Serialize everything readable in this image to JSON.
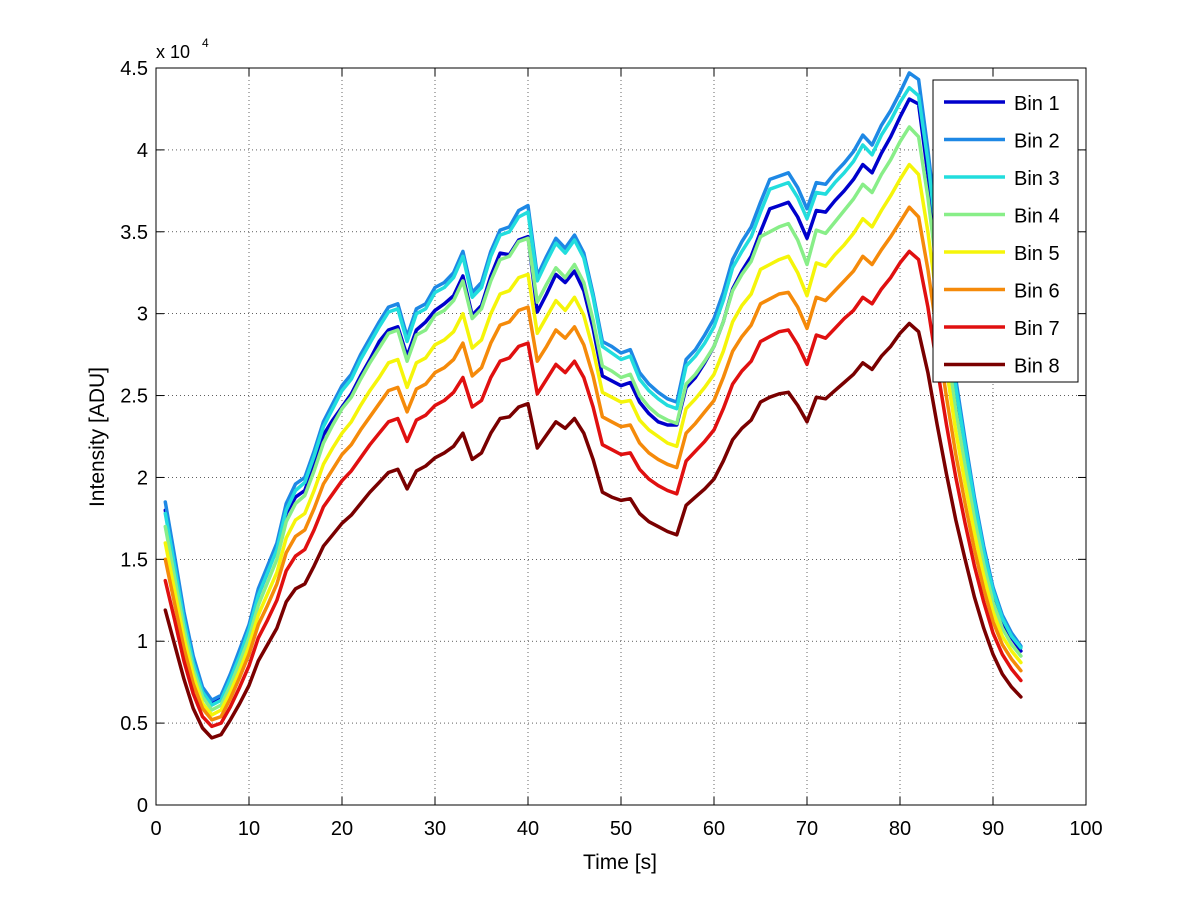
{
  "chart_data": {
    "type": "line",
    "xlabel": "Time [s]",
    "ylabel": "Intensity [ADU]",
    "xlim": [
      0,
      100
    ],
    "ylim": [
      0,
      45000
    ],
    "xticks": [
      0,
      10,
      20,
      30,
      40,
      50,
      60,
      70,
      80,
      90,
      100
    ],
    "yticks": [
      0,
      0.5,
      1,
      1.5,
      2,
      2.5,
      3,
      3.5,
      4,
      4.5
    ],
    "y_exponent_label": "x 10",
    "y_exponent_power": "4",
    "y_multiplier": 10000,
    "grid": true,
    "legend_position": "top-right",
    "x": [
      1,
      2,
      3,
      4,
      5,
      6,
      7,
      8,
      9,
      10,
      11,
      12,
      13,
      14,
      15,
      16,
      17,
      18,
      19,
      20,
      21,
      22,
      23,
      24,
      25,
      26,
      27,
      28,
      29,
      30,
      31,
      32,
      33,
      34,
      35,
      36,
      37,
      38,
      39,
      40,
      41,
      42,
      43,
      44,
      45,
      46,
      47,
      48,
      49,
      50,
      51,
      52,
      53,
      54,
      55,
      56,
      57,
      58,
      59,
      60,
      61,
      62,
      63,
      64,
      65,
      66,
      67,
      68,
      69,
      70,
      71,
      72,
      73,
      74,
      75,
      76,
      77,
      78,
      79,
      80,
      81,
      82,
      83,
      84,
      85,
      86,
      87,
      88,
      89,
      90,
      91,
      92,
      93
    ],
    "series": [
      {
        "name": "Bin 1",
        "color": "#0000CC",
        "values": [
          18000,
          14800,
          11500,
          8800,
          7000,
          6200,
          6500,
          7800,
          9200,
          10800,
          12800,
          14200,
          15700,
          17800,
          18800,
          19200,
          20800,
          22600,
          23500,
          24300,
          25100,
          26200,
          27200,
          28300,
          29000,
          29200,
          27400,
          29000,
          29500,
          30200,
          30600,
          31100,
          32300,
          29900,
          30500,
          32300,
          33700,
          33600,
          34500,
          34700,
          30100,
          31200,
          32400,
          31900,
          32600,
          31400,
          29100,
          26200,
          25900,
          25600,
          25800,
          24600,
          23900,
          23400,
          23200,
          23200,
          25500,
          26100,
          27000,
          28000,
          29500,
          31500,
          32600,
          33500,
          35000,
          36400,
          36600,
          36800,
          35900,
          34600,
          36300,
          36200,
          36900,
          37500,
          38200,
          39100,
          38600,
          39800,
          40800,
          42000,
          43100,
          42800,
          38500,
          33800,
          29200,
          25100,
          21500,
          18000,
          15200,
          12800,
          11200,
          10200,
          9400
        ]
      },
      {
        "name": "Bin 2",
        "color": "#1E88E5",
        "values": [
          18500,
          15200,
          11800,
          9100,
          7200,
          6400,
          6700,
          8000,
          9500,
          11000,
          13200,
          14600,
          16000,
          18400,
          19600,
          20000,
          21600,
          23400,
          24500,
          25600,
          26300,
          27500,
          28500,
          29500,
          30400,
          30600,
          28600,
          30300,
          30600,
          31600,
          31900,
          32500,
          33800,
          31300,
          31900,
          33800,
          35100,
          35300,
          36300,
          36600,
          32300,
          33500,
          34600,
          34000,
          34800,
          33700,
          31200,
          28300,
          28000,
          27600,
          27800,
          26400,
          25700,
          25200,
          24800,
          24600,
          27200,
          27800,
          28700,
          29700,
          31300,
          33300,
          34400,
          35300,
          36800,
          38200,
          38400,
          38600,
          37700,
          36400,
          38000,
          37900,
          38600,
          39200,
          39900,
          40900,
          40300,
          41500,
          42400,
          43500,
          44700,
          44300,
          40000,
          35000,
          30300,
          26000,
          22300,
          18800,
          15800,
          13300,
          11600,
          10500,
          9700
        ]
      },
      {
        "name": "Bin 3",
        "color": "#22DDDD",
        "values": [
          17800,
          14600,
          11300,
          8700,
          6900,
          6100,
          6400,
          7700,
          9100,
          10700,
          12800,
          14200,
          15600,
          18000,
          19200,
          19700,
          21300,
          23100,
          24200,
          25300,
          26000,
          27200,
          28200,
          29200,
          30100,
          30300,
          28300,
          30000,
          30300,
          31300,
          31600,
          32200,
          33500,
          31000,
          31600,
          33500,
          34800,
          35000,
          35900,
          36200,
          32000,
          33200,
          34300,
          33700,
          34500,
          33400,
          31000,
          28000,
          27600,
          27200,
          27400,
          26000,
          25300,
          24800,
          24400,
          24200,
          26800,
          27400,
          28200,
          29200,
          30800,
          32800,
          33800,
          34700,
          36200,
          37600,
          37800,
          38000,
          37100,
          35800,
          37400,
          37300,
          38000,
          38600,
          39300,
          40300,
          39700,
          40900,
          41800,
          42900,
          43800,
          43300,
          39300,
          34400,
          29700,
          25500,
          21900,
          18500,
          15500,
          13100,
          11400,
          10300,
          9600
        ]
      },
      {
        "name": "Bin 4",
        "color": "#88EE88",
        "values": [
          17000,
          13900,
          10800,
          8300,
          6600,
          5800,
          6100,
          7300,
          8700,
          10200,
          12200,
          13600,
          15000,
          17300,
          18400,
          18900,
          20400,
          22100,
          23200,
          24200,
          24900,
          26000,
          27000,
          27900,
          28800,
          29000,
          27100,
          28700,
          29000,
          29900,
          30200,
          30800,
          32000,
          29700,
          30300,
          32000,
          33300,
          33500,
          34400,
          34600,
          30700,
          31800,
          32800,
          32200,
          33000,
          31900,
          29600,
          26800,
          26500,
          26100,
          26300,
          25000,
          24300,
          23800,
          23500,
          23300,
          25700,
          26300,
          27100,
          28000,
          29500,
          31400,
          32400,
          33200,
          34700,
          35000,
          35300,
          35500,
          34500,
          33000,
          35100,
          34900,
          35600,
          36300,
          37000,
          37900,
          37400,
          38500,
          39400,
          40500,
          41400,
          40800,
          37100,
          32500,
          28100,
          24100,
          20700,
          17500,
          14700,
          12400,
          10800,
          9800,
          9100
        ]
      },
      {
        "name": "Bin 5",
        "color": "#F5F50A",
        "values": [
          16000,
          13100,
          10200,
          7900,
          6200,
          5500,
          5800,
          6900,
          8200,
          9700,
          11600,
          12900,
          14200,
          16300,
          17400,
          17800,
          19200,
          20800,
          21800,
          22700,
          23400,
          24400,
          25300,
          26100,
          27000,
          27200,
          25500,
          27000,
          27300,
          28100,
          28400,
          28900,
          30000,
          27900,
          28400,
          30000,
          31200,
          31400,
          32200,
          32400,
          28800,
          29800,
          30800,
          30200,
          31000,
          29900,
          27800,
          25200,
          24900,
          24600,
          24700,
          23500,
          22900,
          22500,
          22100,
          21900,
          24200,
          24800,
          25500,
          26300,
          27700,
          29500,
          30500,
          31200,
          32700,
          33000,
          33300,
          33500,
          32500,
          31100,
          33100,
          32900,
          33600,
          34200,
          34900,
          35800,
          35300,
          36300,
          37200,
          38200,
          39100,
          38500,
          35000,
          30700,
          26600,
          22800,
          19600,
          16600,
          14000,
          11800,
          10300,
          9400,
          8700
        ]
      },
      {
        "name": "Bin 6",
        "color": "#F58A0A",
        "values": [
          15000,
          12300,
          9600,
          7400,
          5900,
          5200,
          5400,
          6500,
          7800,
          9200,
          11000,
          12200,
          13500,
          15400,
          16400,
          16800,
          18100,
          19600,
          20500,
          21400,
          22000,
          22900,
          23700,
          24500,
          25300,
          25500,
          24000,
          25400,
          25700,
          26400,
          26700,
          27200,
          28200,
          26200,
          26700,
          28200,
          29300,
          29500,
          30200,
          30400,
          27100,
          28000,
          29000,
          28500,
          29200,
          28100,
          26200,
          23700,
          23400,
          23100,
          23200,
          22100,
          21500,
          21100,
          20800,
          20600,
          22700,
          23300,
          24000,
          24700,
          26100,
          27700,
          28600,
          29300,
          30600,
          30900,
          31200,
          31300,
          30400,
          29100,
          31000,
          30800,
          31400,
          32000,
          32600,
          33500,
          33000,
          33900,
          34700,
          35600,
          36500,
          35900,
          32700,
          28700,
          24900,
          21400,
          18400,
          15600,
          13200,
          11200,
          9800,
          8900,
          8200
        ]
      },
      {
        "name": "Bin 7",
        "color": "#E01010",
        "values": [
          13700,
          11300,
          8800,
          6800,
          5400,
          4800,
          5000,
          6000,
          7200,
          8500,
          10200,
          11300,
          12500,
          14300,
          15200,
          15600,
          16800,
          18200,
          19000,
          19800,
          20400,
          21200,
          22000,
          22700,
          23400,
          23600,
          22200,
          23500,
          23800,
          24400,
          24700,
          25200,
          26100,
          24300,
          24700,
          26100,
          27100,
          27300,
          28000,
          28200,
          25100,
          26000,
          26900,
          26400,
          27100,
          26100,
          24300,
          22000,
          21700,
          21400,
          21500,
          20500,
          19900,
          19500,
          19200,
          19000,
          21000,
          21600,
          22200,
          22900,
          24200,
          25700,
          26500,
          27100,
          28300,
          28600,
          28900,
          29000,
          28100,
          26900,
          28700,
          28500,
          29100,
          29700,
          30200,
          31000,
          30600,
          31500,
          32200,
          33100,
          33800,
          33300,
          30400,
          26700,
          23200,
          20000,
          17200,
          14600,
          12400,
          10500,
          9200,
          8300,
          7600
        ]
      },
      {
        "name": "Bin 8",
        "color": "#7A0000",
        "values": [
          11900,
          9800,
          7700,
          5900,
          4700,
          4100,
          4300,
          5200,
          6200,
          7300,
          8800,
          9800,
          10800,
          12400,
          13200,
          13500,
          14600,
          15800,
          16500,
          17200,
          17700,
          18400,
          19100,
          19700,
          20300,
          20500,
          19300,
          20400,
          20700,
          21200,
          21500,
          21900,
          22700,
          21100,
          21500,
          22700,
          23600,
          23700,
          24300,
          24500,
          21800,
          22600,
          23400,
          23000,
          23600,
          22700,
          21100,
          19100,
          18800,
          18600,
          18700,
          17800,
          17300,
          17000,
          16700,
          16500,
          18300,
          18800,
          19300,
          19900,
          21000,
          22300,
          23000,
          23500,
          24600,
          24900,
          25100,
          25200,
          24400,
          23400,
          24900,
          24800,
          25300,
          25800,
          26300,
          27000,
          26600,
          27400,
          28000,
          28800,
          29400,
          28900,
          26400,
          23200,
          20200,
          17400,
          15000,
          12700,
          10800,
          9200,
          8000,
          7200,
          6600
        ]
      }
    ]
  }
}
